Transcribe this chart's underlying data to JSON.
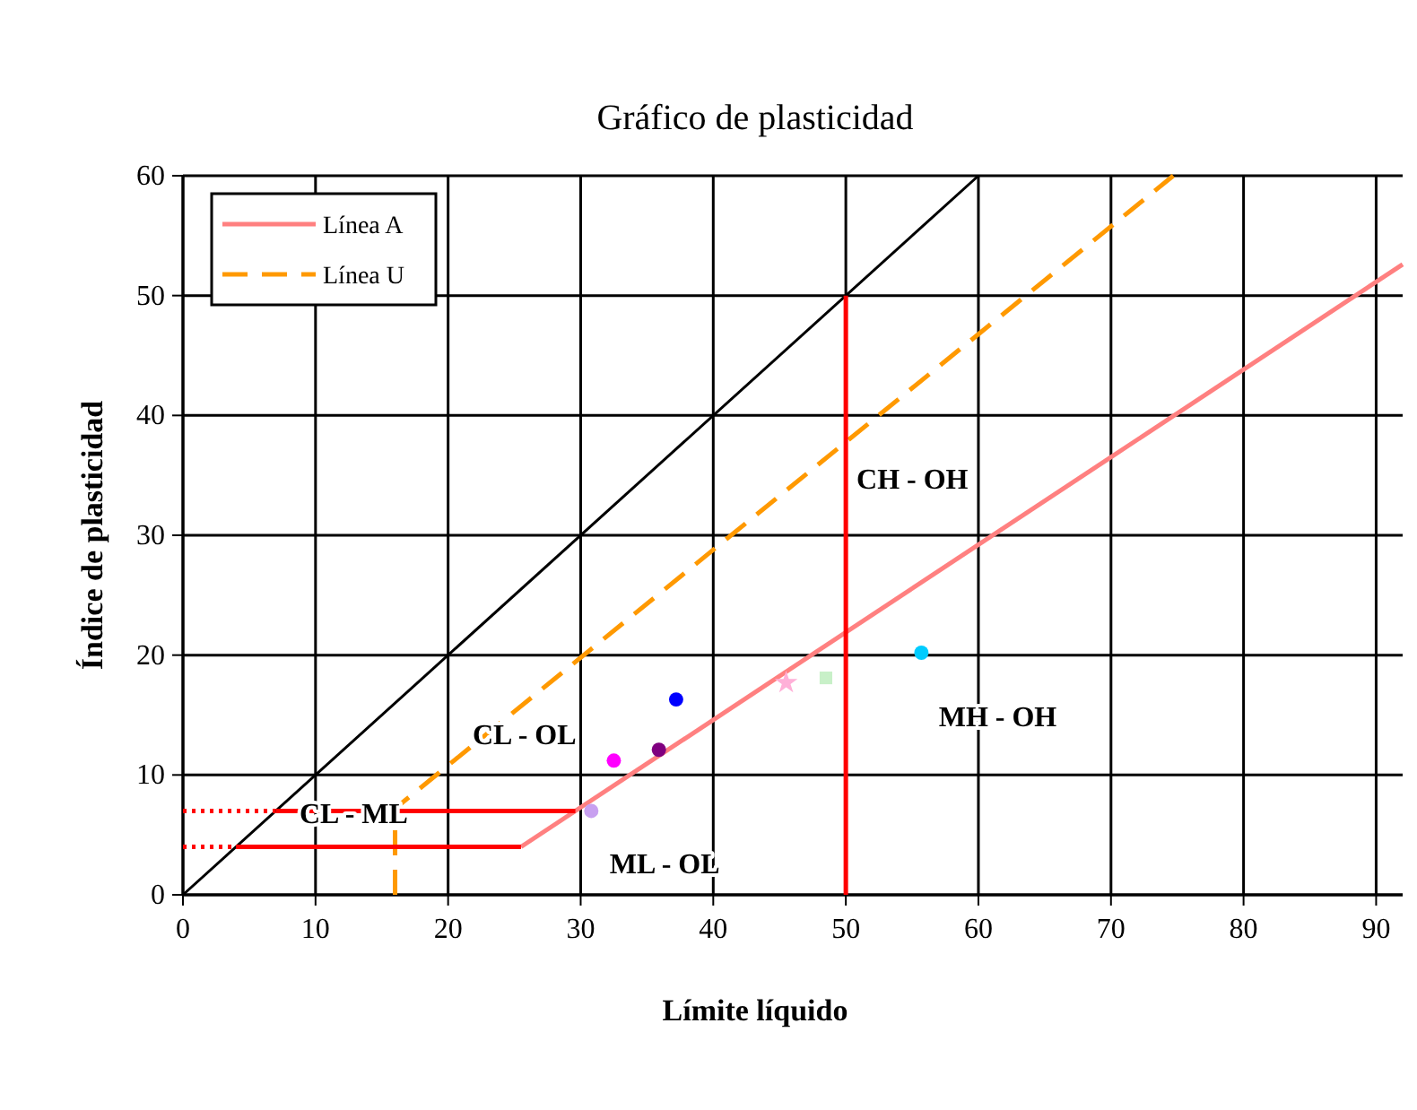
{
  "chart_data": {
    "type": "line",
    "title": "Gráfico de plasticidad",
    "xlabel": "Límite líquido",
    "ylabel": "Índice de plasticidad",
    "xlim": [
      0,
      92
    ],
    "ylim": [
      0,
      60
    ],
    "xticks": [
      0,
      10,
      20,
      30,
      40,
      50,
      60,
      70,
      80,
      90
    ],
    "yticks": [
      0,
      10,
      20,
      30,
      40,
      50,
      60
    ],
    "grid": true,
    "legend": "top left",
    "marker": "none",
    "series": [
      {
        "name": "Línea A",
        "color": "#ff8080",
        "x": [
          25.5,
          92
        ],
        "values": [
          4,
          52.6
        ],
        "line_style": "solid"
      },
      {
        "name": "Línea U",
        "color": "#ff9900",
        "x": [
          16,
          16,
          74.7
        ],
        "values": [
          0,
          7.2,
          60
        ],
        "line_style": "dashed"
      },
      {
        "color": "#000000",
        "x": [
          0,
          60
        ],
        "values": [
          0,
          60
        ],
        "line_style": "solid"
      },
      {
        "color": "#ff0000",
        "x": [
          50,
          50
        ],
        "values": [
          0,
          50
        ],
        "line_style": "solid"
      },
      {
        "color": "#ff0000",
        "x": [
          7,
          29.6
        ],
        "values": [
          7,
          7
        ],
        "line_style": "solid"
      },
      {
        "color": "#ff0000",
        "x": [
          4,
          25.5
        ],
        "values": [
          4,
          4
        ],
        "line_style": "solid"
      },
      {
        "color": "#ff0000",
        "x": [
          0,
          7
        ],
        "values": [
          7,
          7
        ],
        "line_style": "dotted"
      },
      {
        "color": "#ff0000",
        "x": [
          0,
          4
        ],
        "values": [
          4,
          4
        ],
        "line_style": "dotted"
      },
      {
        "type": "scatter",
        "color": "#c8a0f0",
        "x": [
          30.8
        ],
        "values": [
          7
        ],
        "marker": "circle"
      },
      {
        "type": "scatter",
        "color": "#ff00ff",
        "x": [
          32.5
        ],
        "values": [
          11.2
        ],
        "marker": "circle"
      },
      {
        "type": "scatter",
        "color": "#800080",
        "x": [
          35.9
        ],
        "values": [
          12.1
        ],
        "marker": "circle"
      },
      {
        "type": "scatter",
        "color": "#0000ff",
        "x": [
          37.2
        ],
        "values": [
          16.3
        ],
        "marker": "circle"
      },
      {
        "type": "scatter",
        "color": "#ffb0d8",
        "x": [
          45.5
        ],
        "values": [
          17.7
        ],
        "marker": "star"
      },
      {
        "type": "scatter",
        "color": "#c8f0c8",
        "x": [
          48.5
        ],
        "values": [
          18.1
        ],
        "marker": "square"
      },
      {
        "type": "scatter",
        "color": "#00ccff",
        "x": [
          55.7
        ],
        "values": [
          20.2
        ],
        "marker": "circle"
      }
    ],
    "annotations": [
      "CH - OH",
      "MH - OH",
      "CL - OL",
      "CL - ML",
      "ML - OL"
    ]
  }
}
